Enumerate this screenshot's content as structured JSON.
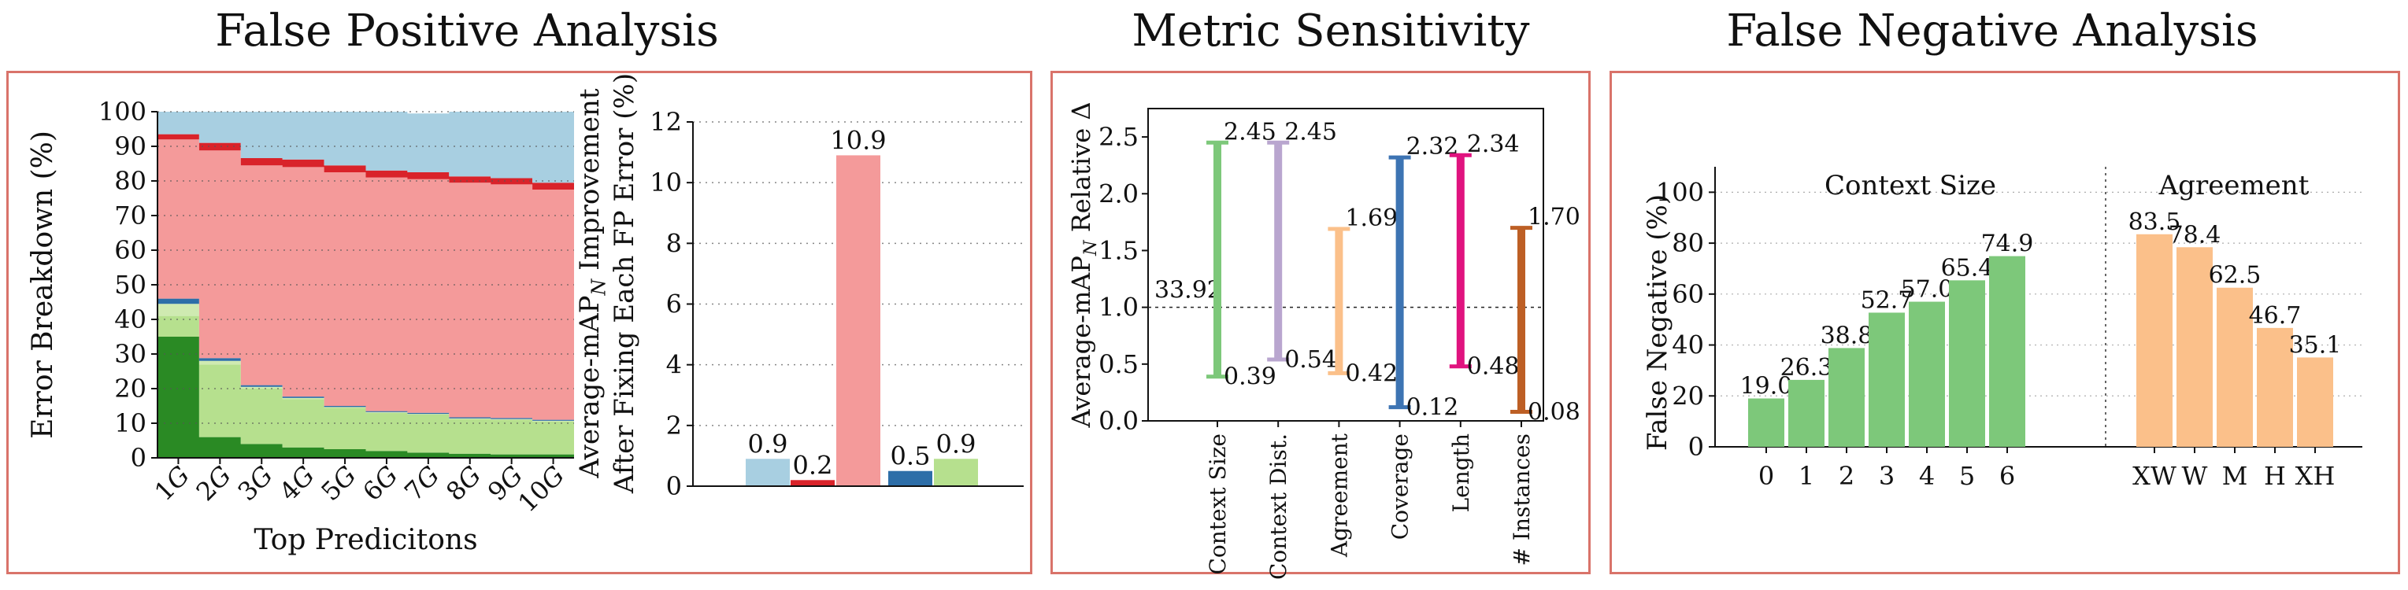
{
  "titles": {
    "false_positive": "False Positive Analysis",
    "metric_sensitivity": "Metric Sensitivity",
    "false_negative": "False Negative Analysis"
  },
  "colors": {
    "panel_border": "#d9736a",
    "bg": "#a8cfe1",
    "loc": "#f49a9a",
    "dup": "#d9232a",
    "cls": "#2d6ea8",
    "lightgreen": "#b6e08e",
    "green": "#37a02f",
    "darkgreen": "#2a8a24"
  },
  "chart_data": [
    {
      "type": "area",
      "ylabel": "Error Breakdown (%)",
      "xlabel": "Top Predicitons",
      "ylim": [
        0,
        100
      ],
      "yticks": [
        0,
        10,
        20,
        30,
        40,
        50,
        60,
        70,
        80,
        90,
        100
      ],
      "grid": true,
      "categories": [
        "1G",
        "2G",
        "3G",
        "4G",
        "5G",
        "6G",
        "7G",
        "8G",
        "9G",
        "10G"
      ],
      "series": [
        {
          "color": "#2a8a24",
          "values": [
            35,
            6,
            4,
            3,
            2.5,
            2,
            1.5,
            1.2,
            1,
            1
          ]
        },
        {
          "color": "#b6e08e",
          "values": [
            6,
            21,
            16,
            14,
            12,
            11,
            11,
            10,
            10,
            9.5
          ]
        },
        {
          "color": "#cfeab1",
          "values": [
            3.5,
            1,
            0.5,
            0.3,
            0.2,
            0.2,
            0.2,
            0.2,
            0.2,
            0.2
          ]
        },
        {
          "color": "#2d6ea8",
          "values": [
            1.5,
            0.8,
            0.5,
            0.4,
            0.3,
            0.3,
            0.3,
            0.3,
            0.3,
            0.3
          ]
        },
        {
          "color": "#f49a9a",
          "values": [
            46,
            60,
            63.5,
            66.3,
            67.5,
            67.5,
            67.5,
            67.8,
            67.5,
            66.5
          ]
        },
        {
          "color": "#d9232a",
          "values": [
            1.5,
            2.2,
            2.1,
            2.2,
            2.0,
            2.0,
            2.0,
            1.8,
            1.8,
            2.0
          ]
        },
        {
          "color": "#a8cfe1",
          "values": [
            6.5,
            9,
            13.4,
            13.8,
            15.5,
            17,
            17,
            18.7,
            19.2,
            20.5
          ]
        }
      ]
    },
    {
      "type": "bar",
      "ylabel": "Average-mAP",
      "ylabel_sub": "N",
      "ylabel_rest": " Improvement",
      "ylabel2": "After Fixing Each FP Error (%)",
      "ylim": [
        0,
        12
      ],
      "yticks": [
        0,
        2,
        4,
        6,
        8,
        10,
        12
      ],
      "grid": true,
      "values": [
        0.9,
        0.2,
        10.9,
        0.5,
        0.9
      ],
      "labels": [
        "0.9",
        "0.2",
        "10.9",
        "0.5",
        "0.9"
      ],
      "colors": [
        "#a8cfe1",
        "#d9232a",
        "#f49a9a",
        "#2d6ea8",
        "#b6e08e"
      ]
    },
    {
      "type": "range",
      "ylabel": "Average-mAP",
      "ylabel_sub": "N",
      "ylabel_rest": " Relative Δ",
      "ylim": [
        0,
        2.75
      ],
      "yticks": [
        "0.0",
        "0.5",
        "1.0",
        "1.5",
        "2.0",
        "2.5"
      ],
      "baseline": 1.0,
      "baseline_label": "33.92",
      "categories": [
        "Context Size",
        "Context Dist.",
        "Agreement",
        "Coverage",
        "Length",
        "# Instances"
      ],
      "min": [
        0.39,
        0.54,
        0.42,
        0.12,
        0.48,
        0.08
      ],
      "max": [
        2.45,
        2.45,
        1.69,
        2.32,
        2.34,
        1.7
      ],
      "min_labels": [
        "0.39",
        "0.54",
        "0.42",
        "0.12",
        "0.48",
        "0.08"
      ],
      "max_labels": [
        "2.45",
        "2.45",
        "1.69",
        "2.32",
        "2.34",
        "1.70"
      ],
      "colors": [
        "#7dc87a",
        "#b9a6cf",
        "#fbc08a",
        "#3d74b3",
        "#e0137f",
        "#bd5f25"
      ]
    },
    {
      "type": "bar",
      "ylabel": "False Negative (%)",
      "ylim": [
        0,
        110
      ],
      "yticks": [
        0,
        20,
        40,
        60,
        80,
        100
      ],
      "grid": true,
      "groups": [
        {
          "name": "Context Size",
          "categories": [
            "0",
            "1",
            "2",
            "3",
            "4",
            "5",
            "6"
          ],
          "values": [
            19.0,
            26.3,
            38.8,
            52.7,
            57.0,
            65.4,
            74.9
          ],
          "labels": [
            "19.0",
            "26.3",
            "38.8",
            "52.7",
            "57.0",
            "65.4",
            "74.9"
          ],
          "color": "#7dc87a"
        },
        {
          "name": "Agreement",
          "categories": [
            "XW",
            "W",
            "M",
            "H",
            "XH"
          ],
          "values": [
            83.5,
            78.4,
            62.5,
            46.7,
            35.1
          ],
          "labels": [
            "83.5",
            "78.4",
            "62.5",
            "46.7",
            "35.1"
          ],
          "color": "#fbc08a"
        }
      ]
    }
  ]
}
